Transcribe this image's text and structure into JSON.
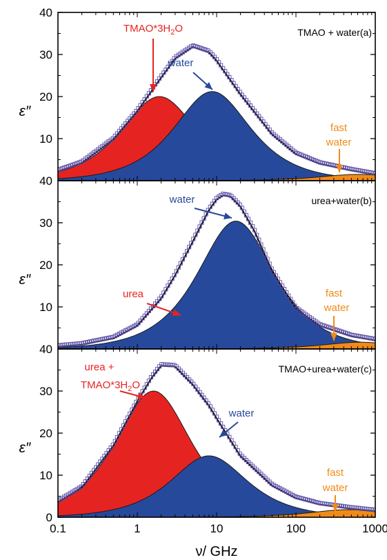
{
  "figure": {
    "xlabel": "ν/ GHz",
    "ylabel": "ε″"
  },
  "chart_data": [
    {
      "type": "area",
      "panel_label": "TMAO + water(a)",
      "xlabel": "ν/ GHz",
      "ylabel": "ε″",
      "xscale": "log",
      "xlim": [
        0.1,
        1000
      ],
      "ylim": [
        0,
        40
      ],
      "xticks": [
        "0.1",
        "1",
        "10",
        "100",
        "1000"
      ],
      "yticks": [
        "40",
        "30",
        "20",
        "10"
      ],
      "series": [
        {
          "name": "TMAO*3H2O",
          "kind": "relaxation",
          "peak_freq_ghz": 1.9,
          "peak_value": 20,
          "color": "#e52421"
        },
        {
          "name": "water",
          "kind": "relaxation",
          "peak_freq_ghz": 8.8,
          "peak_value": 21.2,
          "color": "#27499b"
        },
        {
          "name": "fast water",
          "kind": "relaxation",
          "peak_freq_ghz": 600,
          "peak_value": 1.5,
          "color": "#f08a18"
        }
      ],
      "total_fit": {
        "x": [
          0.1,
          0.2,
          0.5,
          1,
          2,
          3,
          5,
          8,
          10,
          20,
          50,
          100,
          200,
          500,
          1000
        ],
        "y": [
          2.2,
          4.2,
          9.8,
          16.5,
          24.5,
          29,
          31.8,
          30.5,
          28.5,
          20.5,
          11,
          6.3,
          4,
          2.4,
          1.4
        ]
      },
      "annotations": [
        {
          "text": "TMAO*3H2O",
          "color": "#e52421"
        },
        {
          "text": "water",
          "color": "#27499b"
        },
        {
          "text": "fast",
          "color": "#f08a18"
        },
        {
          "text": "water",
          "color": "#f08a18"
        }
      ]
    },
    {
      "type": "area",
      "panel_label": "urea+water(b)",
      "xlabel": "ν/ GHz",
      "ylabel": "ε″",
      "xscale": "log",
      "xlim": [
        0.1,
        1000
      ],
      "ylim": [
        0,
        40
      ],
      "xticks": [
        "0.1",
        "1",
        "10",
        "100",
        "1000"
      ],
      "yticks": [
        "40",
        "30",
        "20",
        "10"
      ],
      "series": [
        {
          "name": "urea",
          "kind": "relaxation",
          "peak_freq_ghz": 6.4,
          "peak_value": 9.5,
          "color": "#e52421"
        },
        {
          "name": "water",
          "kind": "relaxation",
          "peak_freq_ghz": 17.5,
          "peak_value": 30.4,
          "color": "#27499b"
        },
        {
          "name": "fast water",
          "kind": "relaxation",
          "peak_freq_ghz": 650,
          "peak_value": 1.6,
          "color": "#f08a18"
        }
      ],
      "total_fit": {
        "x": [
          0.1,
          0.2,
          0.5,
          1,
          2,
          3,
          5,
          8,
          10,
          12,
          15,
          20,
          30,
          50,
          100,
          200,
          500,
          1000
        ],
        "y": [
          0.5,
          1,
          2.5,
          5.5,
          12,
          17.5,
          25.5,
          33,
          35.5,
          36.5,
          36.2,
          33.8,
          28,
          18.5,
          9.5,
          5.5,
          3,
          2
        ]
      },
      "annotations": [
        {
          "text": "water",
          "color": "#27499b"
        },
        {
          "text": "urea",
          "color": "#e52421"
        },
        {
          "text": "fast",
          "color": "#f08a18"
        },
        {
          "text": "water",
          "color": "#f08a18"
        }
      ]
    },
    {
      "type": "area",
      "panel_label": "TMAO+urea+water(c)",
      "xlabel": "ν/ GHz",
      "ylabel": "ε″",
      "xscale": "log",
      "xlim": [
        0.1,
        1000
      ],
      "ylim": [
        0,
        40
      ],
      "xticks": [
        "0.1",
        "1",
        "10",
        "100",
        "1000"
      ],
      "yticks": [
        "40",
        "30",
        "20",
        "10",
        "0"
      ],
      "series": [
        {
          "name": "urea + TMAO*3H2O",
          "kind": "relaxation",
          "peak_freq_ghz": 1.6,
          "peak_value": 30,
          "color": "#e52421"
        },
        {
          "name": "water",
          "kind": "relaxation",
          "peak_freq_ghz": 8,
          "peak_value": 14.6,
          "color": "#27499b"
        },
        {
          "name": "fast water",
          "kind": "relaxation",
          "peak_freq_ghz": 450,
          "peak_value": 1.8,
          "color": "#f08a18"
        }
      ],
      "total_fit": {
        "x": [
          0.1,
          0.2,
          0.5,
          1,
          1.5,
          2,
          3,
          5,
          8,
          10,
          20,
          50,
          100,
          200,
          500,
          1000
        ],
        "y": [
          3.6,
          7,
          17,
          27.5,
          33,
          36,
          35.8,
          31.5,
          26.5,
          23.5,
          14.5,
          7.5,
          4.5,
          3,
          2,
          1.4
        ]
      },
      "annotations": [
        {
          "text": "urea +",
          "color": "#e52421"
        },
        {
          "text": "TMAO*3H2O",
          "color": "#e52421"
        },
        {
          "text": "water",
          "color": "#27499b"
        },
        {
          "text": "fast",
          "color": "#f08a18"
        },
        {
          "text": "water",
          "color": "#f08a18"
        }
      ]
    }
  ]
}
